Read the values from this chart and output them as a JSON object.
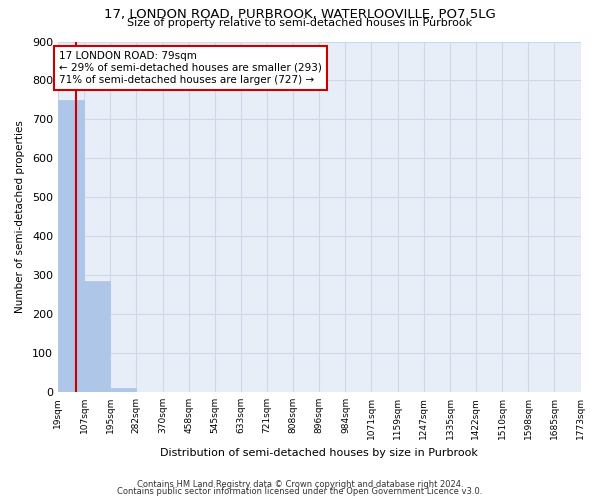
{
  "title": "17, LONDON ROAD, PURBROOK, WATERLOOVILLE, PO7 5LG",
  "subtitle": "Size of property relative to semi-detached houses in Purbrook",
  "xlabel": "Distribution of semi-detached houses by size in Purbrook",
  "ylabel": "Number of semi-detached properties",
  "footnote1": "Contains HM Land Registry data © Crown copyright and database right 2024.",
  "footnote2": "Contains public sector information licensed under the Open Government Licence v3.0.",
  "property_size": 79,
  "property_label": "17 LONDON ROAD: 79sqm",
  "pct_smaller": 29,
  "n_smaller": 293,
  "pct_larger": 71,
  "n_larger": 727,
  "bin_edges": [
    19,
    107,
    195,
    282,
    370,
    458,
    545,
    633,
    721,
    808,
    896,
    984,
    1071,
    1159,
    1247,
    1335,
    1422,
    1510,
    1598,
    1685,
    1773
  ],
  "bin_labels": [
    "19sqm",
    "107sqm",
    "195sqm",
    "282sqm",
    "370sqm",
    "458sqm",
    "545sqm",
    "633sqm",
    "721sqm",
    "808sqm",
    "896sqm",
    "984sqm",
    "1071sqm",
    "1159sqm",
    "1247sqm",
    "1335sqm",
    "1422sqm",
    "1510sqm",
    "1598sqm",
    "1685sqm",
    "1773sqm"
  ],
  "bar_heights": [
    750,
    285,
    10,
    0,
    0,
    0,
    0,
    0,
    0,
    0,
    0,
    0,
    0,
    0,
    0,
    0,
    0,
    0,
    0,
    0
  ],
  "bar_color": "#aec6e8",
  "bar_edge_color": "#aec6e8",
  "grid_color": "#d0d8e8",
  "bg_color": "#e8eef8",
  "property_line_color": "#cc0000",
  "annotation_box_color": "#cc0000",
  "ylim": [
    0,
    900
  ],
  "yticks": [
    0,
    100,
    200,
    300,
    400,
    500,
    600,
    700,
    800,
    900
  ]
}
